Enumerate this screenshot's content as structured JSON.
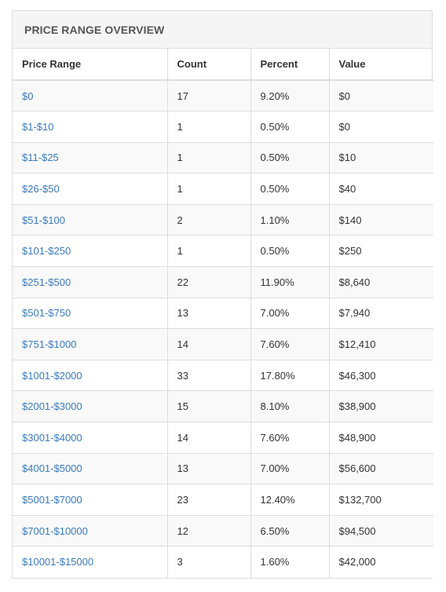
{
  "panel": {
    "title": "PRICE RANGE OVERVIEW"
  },
  "table": {
    "headers": {
      "range": "Price Range",
      "count": "Count",
      "percent": "Percent",
      "value": "Value"
    },
    "rows": [
      {
        "range": "$0",
        "count": "17",
        "percent": "9.20%",
        "value": "$0"
      },
      {
        "range": "$1-$10",
        "count": "1",
        "percent": "0.50%",
        "value": "$0"
      },
      {
        "range": "$11-$25",
        "count": "1",
        "percent": "0.50%",
        "value": "$10"
      },
      {
        "range": "$26-$50",
        "count": "1",
        "percent": "0.50%",
        "value": "$40"
      },
      {
        "range": "$51-$100",
        "count": "2",
        "percent": "1.10%",
        "value": "$140"
      },
      {
        "range": "$101-$250",
        "count": "1",
        "percent": "0.50%",
        "value": "$250"
      },
      {
        "range": "$251-$500",
        "count": "22",
        "percent": "11.90%",
        "value": "$8,640"
      },
      {
        "range": "$501-$750",
        "count": "13",
        "percent": "7.00%",
        "value": "$7,940"
      },
      {
        "range": "$751-$1000",
        "count": "14",
        "percent": "7.60%",
        "value": "$12,410"
      },
      {
        "range": "$1001-$2000",
        "count": "33",
        "percent": "17.80%",
        "value": "$46,300"
      },
      {
        "range": "$2001-$3000",
        "count": "15",
        "percent": "8.10%",
        "value": "$38,900"
      },
      {
        "range": "$3001-$4000",
        "count": "14",
        "percent": "7.60%",
        "value": "$48,900"
      },
      {
        "range": "$4001-$5000",
        "count": "13",
        "percent": "7.00%",
        "value": "$56,600"
      },
      {
        "range": "$5001-$7000",
        "count": "23",
        "percent": "12.40%",
        "value": "$132,700"
      },
      {
        "range": "$7001-$10000",
        "count": "12",
        "percent": "6.50%",
        "value": "$94,500"
      },
      {
        "range": "$10001-$15000",
        "count": "3",
        "percent": "1.60%",
        "value": "$42,000"
      }
    ]
  },
  "colors": {
    "link": "#3a7bbf",
    "heading_bg": "#f5f5f5",
    "border": "#dddddd",
    "stripe": "#f9f9f9"
  }
}
